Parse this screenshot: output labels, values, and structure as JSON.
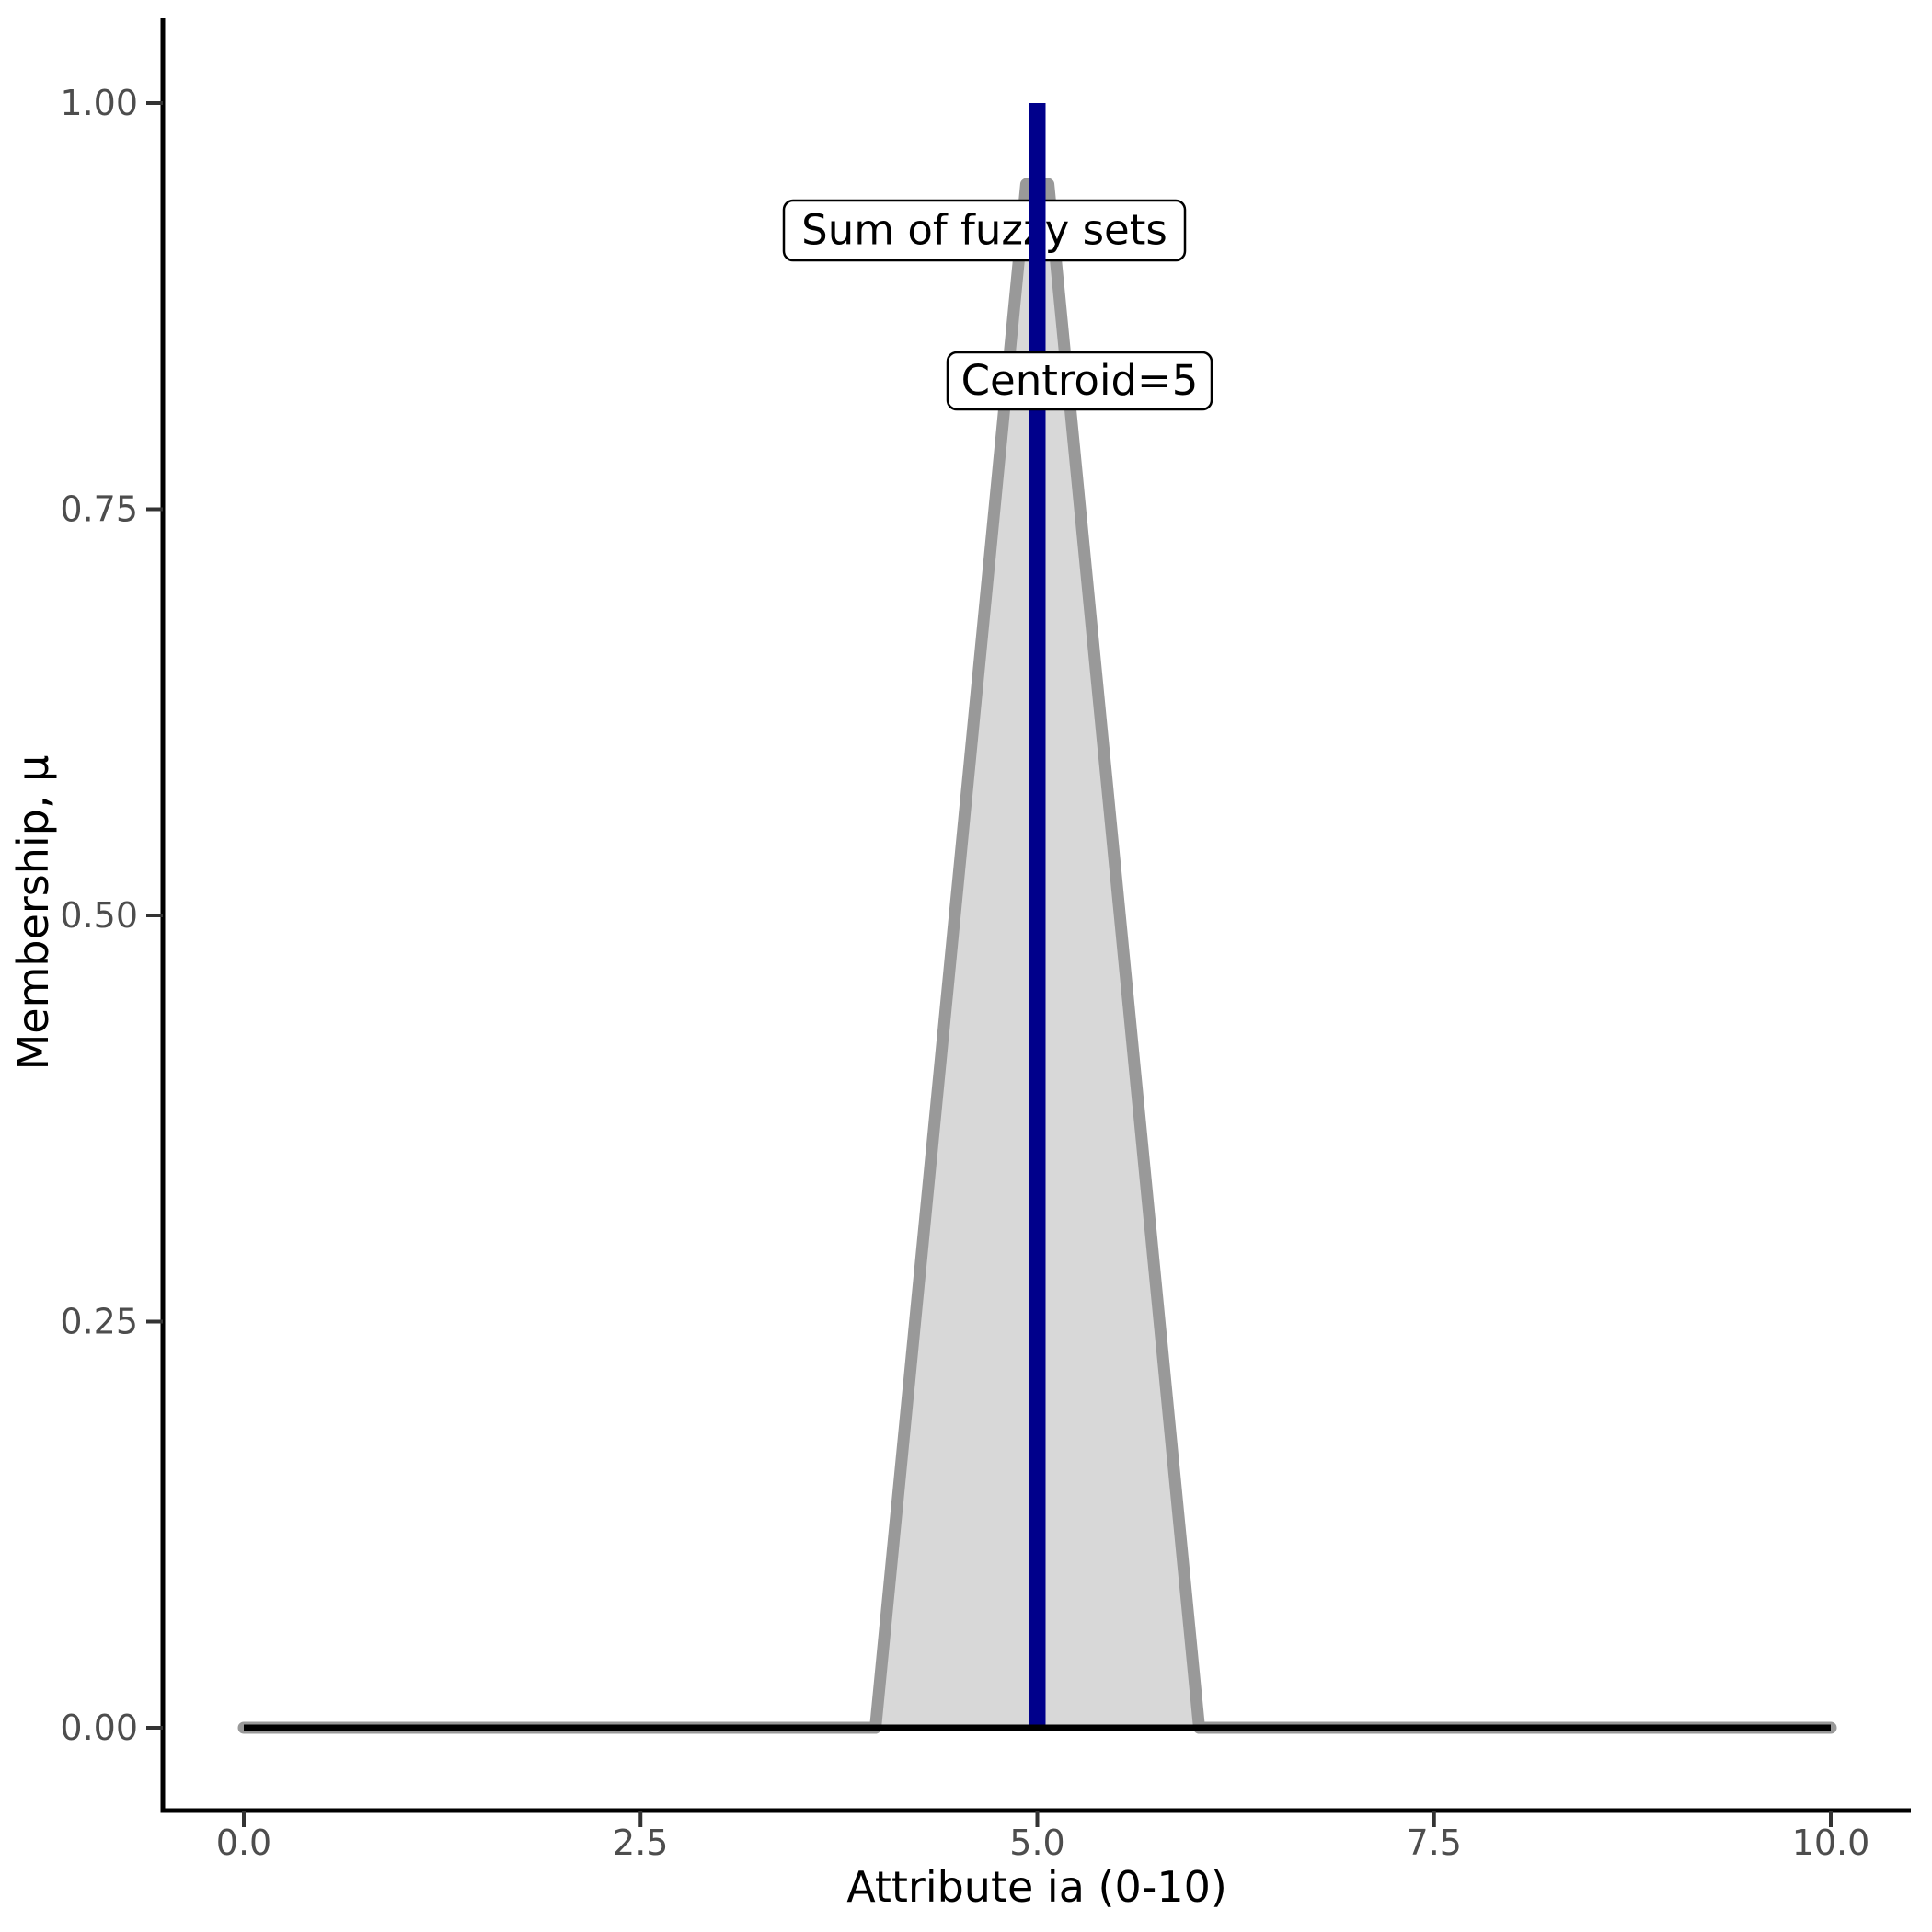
{
  "figure": {
    "background": "#ffffff"
  },
  "chart_data": {
    "type": "area",
    "title": "",
    "xlabel": "Attribute ia (0-10)",
    "ylabel": "Membership, μ",
    "xlim": [
      0,
      10
    ],
    "ylim": [
      0,
      1
    ],
    "grid": "off",
    "legend": "none",
    "x_ticks": [
      0.0,
      2.5,
      5.0,
      7.5,
      10.0
    ],
    "x_tick_labels": [
      "0.0",
      "2.5",
      "5.0",
      "7.5",
      "10.0"
    ],
    "y_ticks": [
      0.0,
      0.25,
      0.5,
      0.75,
      1.0
    ],
    "y_tick_labels": [
      "0.00",
      "0.25",
      "0.50",
      "0.75",
      "1.00"
    ],
    "series": [
      {
        "name": "sum-of-fuzzy-sets",
        "kind": "area-with-outline",
        "points": [
          [
            0,
            0
          ],
          [
            3.98,
            0
          ],
          [
            4.93,
            0.95
          ],
          [
            5.07,
            0.95
          ],
          [
            6.02,
            0
          ],
          [
            10,
            0
          ]
        ],
        "outline_color": "#999999",
        "outline_width": 13,
        "fill_color": "#d8d8d8"
      },
      {
        "name": "zero-baseline",
        "kind": "line",
        "points": [
          [
            0,
            0
          ],
          [
            10,
            0
          ]
        ],
        "color": "#000000",
        "width": 7
      },
      {
        "name": "centroid-line",
        "kind": "vline",
        "x": 5,
        "y_from": 0,
        "y_to": 1,
        "color": "#00008b",
        "width": 18
      }
    ],
    "annotations": [
      {
        "id": "sum",
        "text": "Sum of fuzzy sets",
        "box_fill": "#ffffff",
        "box_stroke": "#000000",
        "layer": "below-centroid-line"
      },
      {
        "id": "centroid",
        "text": "Centroid=5",
        "box_fill": "#ffffff",
        "box_stroke": "#000000",
        "layer": "above-centroid-line"
      }
    ],
    "centroid_value": 5,
    "colors": {
      "axis_line": "#000000",
      "tick_mark": "#333333",
      "tick_label": "#4d4d4d",
      "axis_title": "#000000",
      "annotation_text": "#000000"
    }
  }
}
